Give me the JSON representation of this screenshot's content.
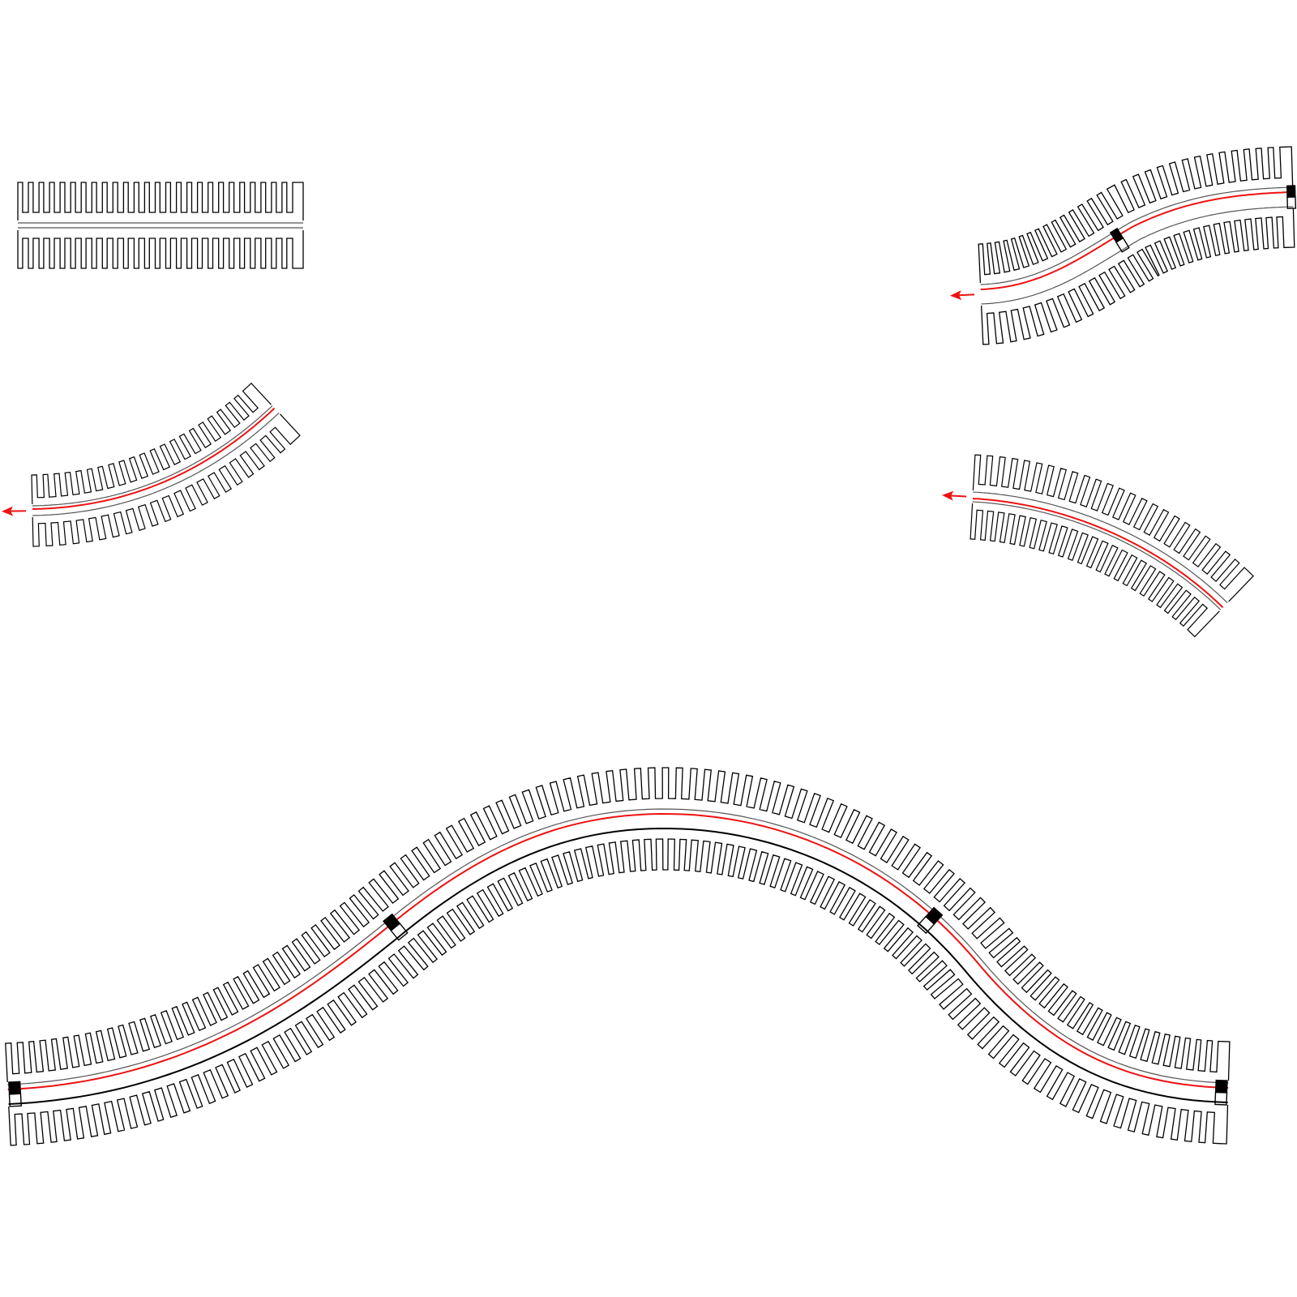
{
  "colors": {
    "background": "#ffffff",
    "outline": "#000000",
    "rail": "#555555",
    "path": "#ee1111",
    "arrow": "#ee1111",
    "marker": "#000000"
  },
  "strips": [
    {
      "id": "straight-strip",
      "shape": "straight",
      "red_path": false,
      "arrow": false,
      "markers": 0
    },
    {
      "id": "bent-strip-up-right",
      "shape": "curve-up",
      "red_path": true,
      "arrow": true,
      "arrow_direction": "left",
      "markers": 0
    },
    {
      "id": "s-curve-strip",
      "shape": "s-curve",
      "red_path": true,
      "arrow": true,
      "arrow_direction": "left",
      "markers": 2
    },
    {
      "id": "bent-strip-down-right",
      "shape": "curve-down",
      "red_path": true,
      "arrow": true,
      "arrow_direction": "left",
      "markers": 0
    },
    {
      "id": "long-wave-strip",
      "shape": "wave",
      "red_path": true,
      "arrow": false,
      "markers": 4
    }
  ]
}
